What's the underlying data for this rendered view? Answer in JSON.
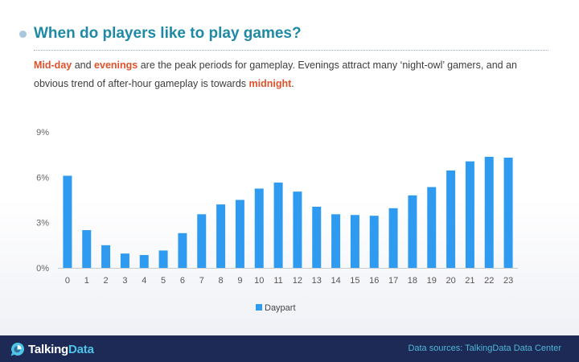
{
  "header": {
    "title": "When do players like to play games?"
  },
  "subtitle": {
    "hl1": "Mid-day",
    "t1": " and ",
    "hl2": "evenings",
    "t2": " are the peak periods for gameplay. Evenings attract many ‘night-owl’ gamers, and an obvious trend of after-hour gameplay is towards ",
    "hl3": "midnight",
    "t3": "."
  },
  "footer": {
    "logo_part1": "Talking",
    "logo_part2": "Data",
    "source": "Data sources: TalkingData Data Center"
  },
  "colors": {
    "title": "#1f8aa6",
    "highlight": "#e0522b",
    "bar": "#2e9bf0",
    "footer_bg": "#1c2a55",
    "source_text": "#4fb6d9"
  },
  "chart_data": {
    "type": "bar",
    "categories": [
      "0",
      "1",
      "2",
      "3",
      "4",
      "5",
      "6",
      "7",
      "8",
      "9",
      "10",
      "11",
      "12",
      "13",
      "14",
      "15",
      "16",
      "17",
      "18",
      "19",
      "20",
      "21",
      "22",
      "23"
    ],
    "series": [
      {
        "name": "Daypart",
        "values": [
          6.1,
          2.5,
          1.5,
          0.95,
          0.85,
          1.15,
          2.3,
          3.55,
          4.2,
          4.5,
          5.25,
          5.65,
          5.05,
          4.05,
          3.55,
          3.5,
          3.45,
          3.95,
          4.8,
          5.35,
          6.45,
          7.05,
          7.35,
          7.3
        ]
      }
    ],
    "yticks": [
      "0%",
      "3%",
      "6%",
      "9%"
    ],
    "ylim": [
      0,
      9
    ],
    "grid": false,
    "legend_position": "bottom"
  }
}
